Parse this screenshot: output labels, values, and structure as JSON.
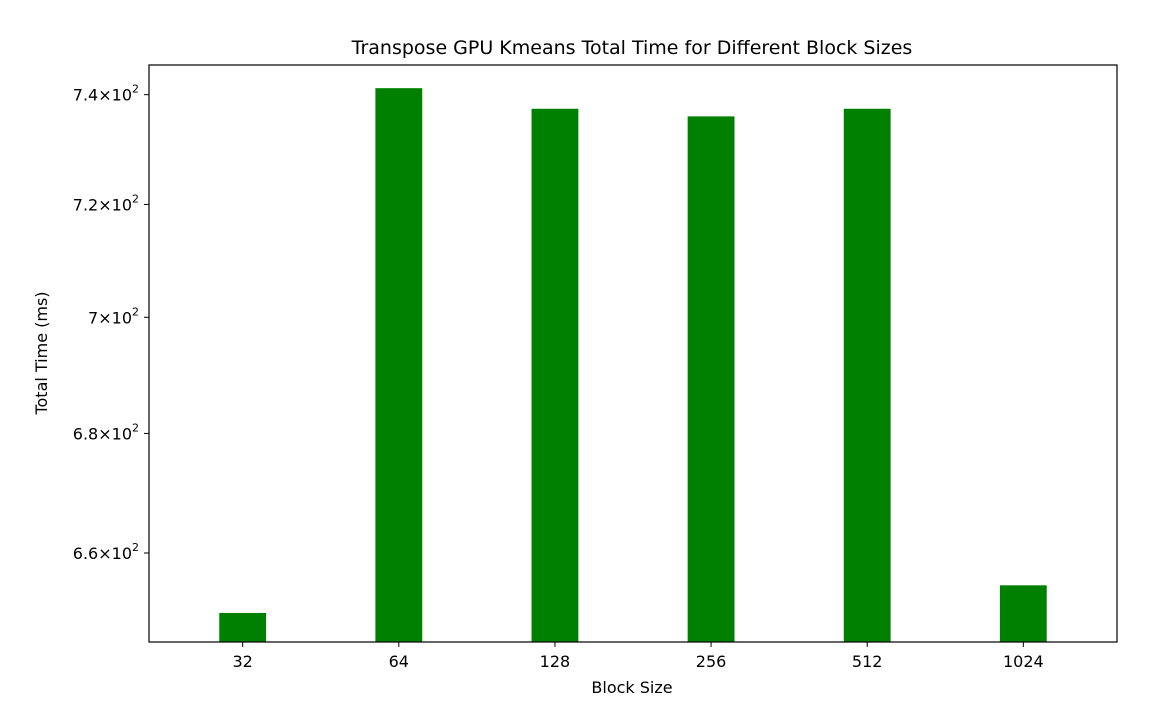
{
  "chart_data": {
    "type": "bar",
    "title": "Transpose GPU Kmeans Total Time for Different Block Sizes",
    "xlabel": "Block Size",
    "ylabel": "Total Time (ms)",
    "yscale": "log",
    "ylim": [
      645.5,
      745.5
    ],
    "categories": [
      "32",
      "64",
      "128",
      "256",
      "512",
      "1024"
    ],
    "values": [
      650.2,
      741.2,
      737.4,
      736.0,
      737.4,
      654.7
    ],
    "bar_color": "#008000",
    "grid": false,
    "yticks": [
      {
        "value": 660,
        "mantissa": "6.6",
        "base": "10",
        "exponent": "2"
      },
      {
        "value": 680,
        "mantissa": "6.8",
        "base": "10",
        "exponent": "2"
      },
      {
        "value": 700,
        "mantissa": "7",
        "base": "10",
        "exponent": "2"
      },
      {
        "value": 720,
        "mantissa": "7.2",
        "base": "10",
        "exponent": "2"
      },
      {
        "value": 740,
        "mantissa": "7.4",
        "base": "10",
        "exponent": "2"
      }
    ]
  }
}
